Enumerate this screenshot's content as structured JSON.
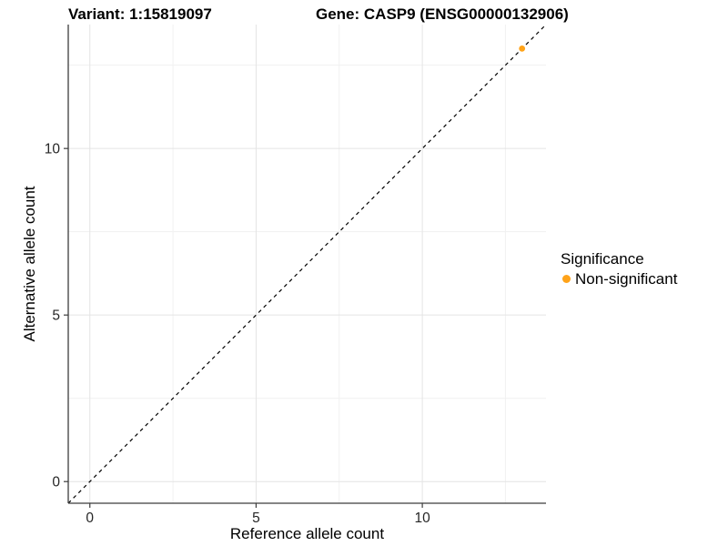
{
  "titles": {
    "variant": "Variant: 1:15819097",
    "gene": "Gene: CASP9 (ENSG00000132906)"
  },
  "legend": {
    "title": "Significance",
    "entries": [
      {
        "label": "Non-significant",
        "color": "#FFA319",
        "shape": "circle"
      }
    ]
  },
  "colors": {
    "point": "#FFA319",
    "grid_major": "#e4e4e4",
    "grid_minor": "#f1f1f1",
    "axis_line": "#3c3c3c",
    "tick_label": "#262626",
    "reference_line": "#000000",
    "background": "#ffffff"
  },
  "chart_data": {
    "type": "scatter",
    "title": "Variant: 1:15819097 | Gene: CASP9 (ENSG00000132906)",
    "xlabel": "Reference allele count",
    "ylabel": "Alternative allele count",
    "xlim": [
      -0.65,
      13.72
    ],
    "ylim": [
      -0.65,
      13.72
    ],
    "x_ticks": [
      0,
      5,
      10
    ],
    "y_ticks": [
      0,
      5,
      10
    ],
    "x_minor_ticks": [
      2.5,
      7.5,
      12.5
    ],
    "y_minor_ticks": [
      2.5,
      7.5,
      12.5
    ],
    "grid": "major+minor",
    "legend_position": "right",
    "legend_title": "Significance",
    "series": [
      {
        "name": "Non-significant",
        "color": "#FFA319",
        "points": [
          [
            13,
            13
          ]
        ]
      }
    ],
    "reference_line": {
      "type": "identity",
      "style": "dashed",
      "color": "#000000"
    }
  }
}
